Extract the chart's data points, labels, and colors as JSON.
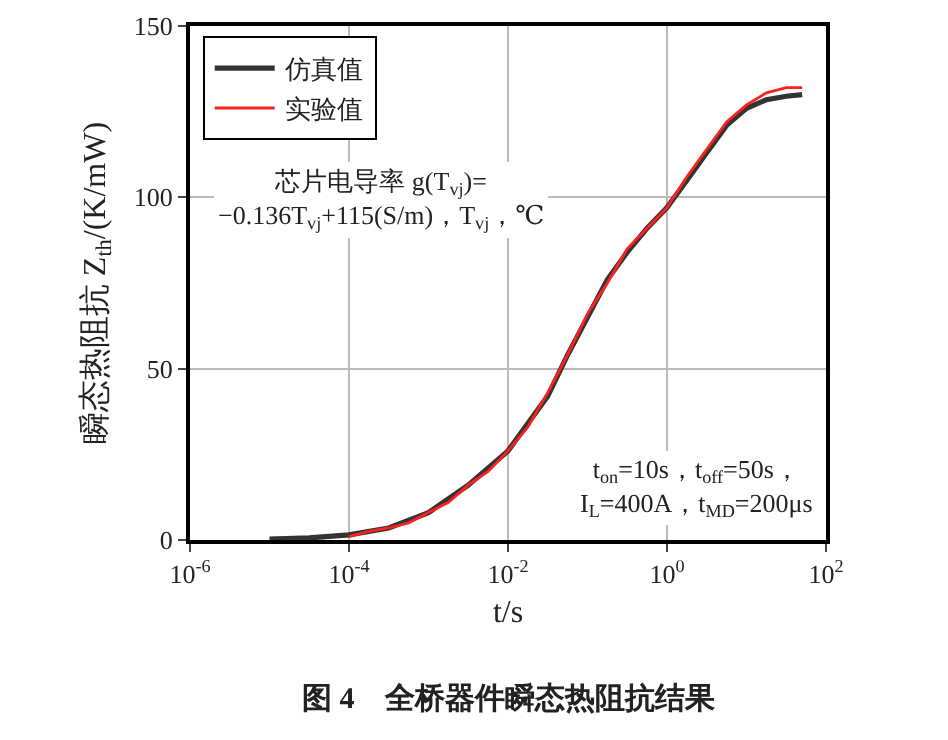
{
  "chart_data": {
    "type": "line",
    "xlabel": "t/s",
    "ylabel": "瞬态热阻抗 Z$_{th}$/(K/mW)",
    "log": "x",
    "grid": true,
    "legend": "top left",
    "line_style": "solid",
    "marker": "none",
    "xlim": [
      1e-06,
      100
    ],
    "xticks": [
      {
        "value": 1e-06,
        "label": "10$^{-6}$"
      },
      {
        "value": 0.0001,
        "label": "10$^{-4}$"
      },
      {
        "value": 0.01,
        "label": "10$^{-2}$"
      },
      {
        "value": 1,
        "label": "10$^{0}$"
      },
      {
        "value": 100,
        "label": "10$^{2}$"
      }
    ],
    "ylim": [
      0,
      150
    ],
    "yticks": [
      0,
      50,
      100,
      150
    ],
    "series": [
      {
        "name": "仿真值",
        "color": "#333333",
        "x": [
          1e-05,
          3.16e-05,
          0.0001,
          0.000316,
          0.001,
          0.00316,
          0.01,
          0.0316,
          0.0562,
          0.1,
          0.178,
          0.316,
          0.562,
          1,
          1.78,
          3.16,
          5.62,
          10,
          17.8,
          31.6,
          50.1
        ],
        "values": [
          0.3,
          0.6,
          1.5,
          3.5,
          8,
          16,
          26,
          42,
          54,
          65,
          76,
          84,
          91,
          97,
          105,
          113,
          121,
          126,
          128.5,
          129.5,
          130
        ]
      },
      {
        "name": "实验值",
        "color": "#ff2020",
        "x": [
          0.0001,
          0.000178,
          0.000316,
          0.000562,
          0.001,
          0.00178,
          0.00316,
          0.00562,
          0.01,
          0.0178,
          0.0316,
          0.0562,
          0.1,
          0.178,
          0.316,
          0.562,
          1,
          1.78,
          3.16,
          5.62,
          10,
          17.8,
          31.6,
          50.1
        ],
        "values": [
          1,
          2.5,
          3.5,
          5,
          8,
          11,
          16,
          20,
          26,
          33,
          43,
          54,
          66,
          75,
          85,
          91,
          97,
          106,
          114,
          122,
          127,
          130.5,
          132,
          132
        ]
      }
    ],
    "annotations": [
      "芯片电导率 g(T$_{vj}$)=\n−0.136T$_{vj}$+115(S/m)，T$_{vj}$，℃",
      "t$_{on}$=10s，t$_{off}$=50s，\nI$_{L}$=400A，t$_{MD}$=200μs",
      "图 4　全桥器件瞬态热阻抗结果"
    ]
  }
}
